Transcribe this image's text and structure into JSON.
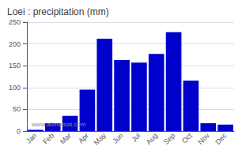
{
  "chart_data": {
    "type": "bar",
    "title": "Loei : precipitation (mm)",
    "categories": [
      "Jan",
      "Feb",
      "Mar",
      "Apr",
      "May",
      "Jun",
      "Jul",
      "Aug",
      "Sep",
      "Oct",
      "Nov",
      "Dec"
    ],
    "values": [
      3,
      18,
      35,
      95,
      212,
      163,
      157,
      177,
      227,
      116,
      18,
      15
    ],
    "color": "#0000CC",
    "ylim": [
      0,
      250
    ],
    "yticks": [
      0,
      50,
      100,
      150,
      200,
      250
    ],
    "grid": true,
    "annotations": [
      "www.allmetsat.com"
    ]
  }
}
